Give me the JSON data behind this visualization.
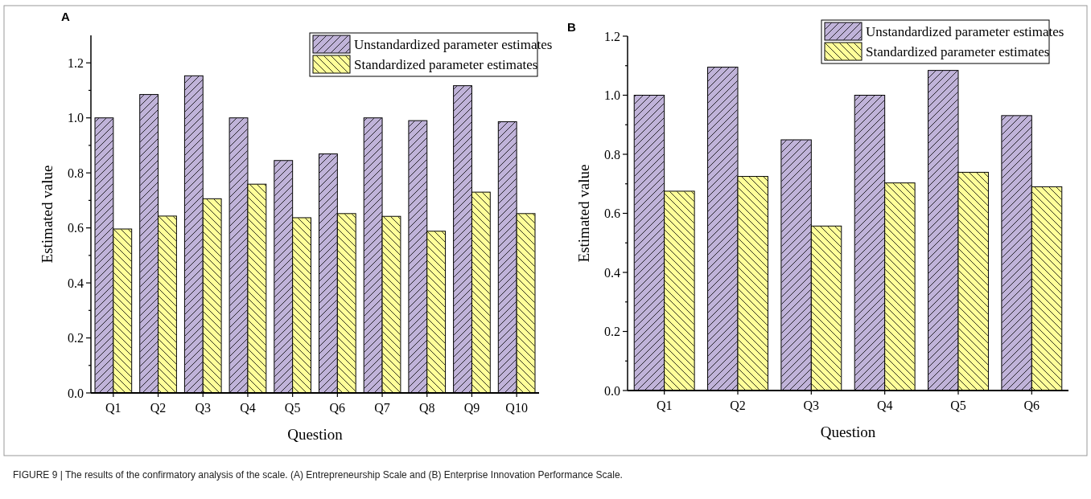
{
  "chart_data": [
    {
      "type": "bar",
      "title": "A",
      "xlabel": "Question",
      "ylabel": "Estimated value",
      "categories": [
        "Q1",
        "Q2",
        "Q3",
        "Q4",
        "Q5",
        "Q6",
        "Q7",
        "Q8",
        "Q9",
        "Q10"
      ],
      "series": [
        {
          "name": "Unstandardized parameter estimates",
          "color": "#c0b3d9",
          "values": [
            1.0,
            1.085,
            1.153,
            1.0,
            0.845,
            0.869,
            1.0,
            0.99,
            1.117,
            0.986
          ]
        },
        {
          "name": "Standardized parameter estimates",
          "color": "#ffff99",
          "values": [
            0.596,
            0.643,
            0.706,
            0.759,
            0.637,
            0.652,
            0.642,
            0.588,
            0.73,
            0.652
          ]
        }
      ],
      "ylim": [
        0,
        1.3
      ],
      "yticks": [
        {
          "value": 0,
          "label": "0.0"
        },
        {
          "value": 0.1,
          "label": null
        },
        {
          "value": 0.2,
          "label": "0.2"
        },
        {
          "value": 0.3,
          "label": null
        },
        {
          "value": 0.4,
          "label": "0.4"
        },
        {
          "value": 0.5,
          "label": null
        },
        {
          "value": 0.6,
          "label": "0.6"
        },
        {
          "value": 0.7,
          "label": null
        },
        {
          "value": 0.8,
          "label": "0.8"
        },
        {
          "value": 0.9,
          "label": null
        },
        {
          "value": 1,
          "label": "1.0"
        },
        {
          "value": 1.1,
          "label": null
        },
        {
          "value": 1.2,
          "label": "1.2"
        }
      ],
      "legend": "top right",
      "grid": false,
      "annotations": [
        "FIGURE 9 | The results of the confirmatory analysis of the scale. (A) Entrepreneurship Scale and (B) Enterprise Innovation Performance Scale."
      ]
    },
    {
      "type": "bar",
      "title": "B",
      "xlabel": "Question",
      "ylabel": "Estimated value",
      "categories": [
        "Q1",
        "Q2",
        "Q3",
        "Q4",
        "Q5",
        "Q6"
      ],
      "series": [
        {
          "name": "Unstandardized parameter estimates",
          "color": "#c0b3d9",
          "values": [
            1.0,
            1.095,
            0.849,
            1.0,
            1.084,
            0.931
          ]
        },
        {
          "name": "Standardized parameter estimates",
          "color": "#ffff99",
          "values": [
            0.675,
            0.725,
            0.557,
            0.703,
            0.739,
            0.69
          ]
        }
      ],
      "ylim": [
        0,
        1.2
      ],
      "yticks": [
        {
          "value": 0,
          "label": "0.0"
        },
        {
          "value": 0.1,
          "label": null
        },
        {
          "value": 0.2,
          "label": "0.2"
        },
        {
          "value": 0.3,
          "label": null
        },
        {
          "value": 0.4,
          "label": "0.4"
        },
        {
          "value": 0.5,
          "label": null
        },
        {
          "value": 0.6,
          "label": "0.6"
        },
        {
          "value": 0.7,
          "label": null
        },
        {
          "value": 0.8,
          "label": "0.8"
        },
        {
          "value": 0.9,
          "label": null
        },
        {
          "value": 1,
          "label": "1.0"
        },
        {
          "value": 1.1,
          "label": null
        },
        {
          "value": 1.2,
          "label": "1.2"
        }
      ],
      "legend": "top right",
      "grid": false
    }
  ]
}
